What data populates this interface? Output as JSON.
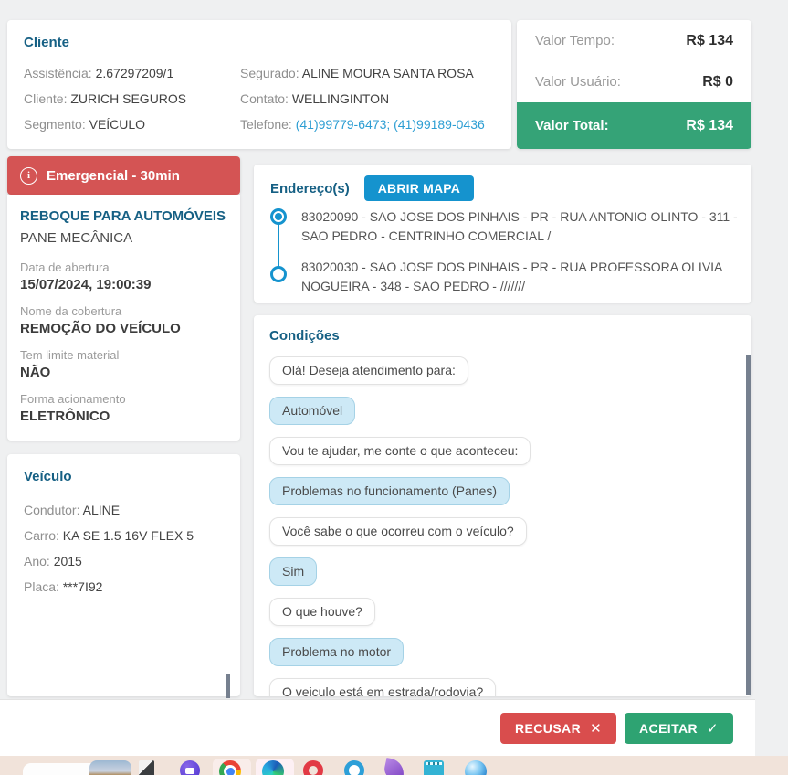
{
  "client_card": {
    "title": "Cliente",
    "left_rows": [
      {
        "label": "Assistência:",
        "value": "2.67297209/1"
      },
      {
        "label": "Cliente:",
        "value": "ZURICH SEGUROS"
      },
      {
        "label": "Segmento:",
        "value": "VEÍCULO"
      }
    ],
    "right_rows": [
      {
        "label": "Segurado:",
        "value": "ALINE MOURA SANTA ROSA"
      },
      {
        "label": "Contato:",
        "value": "WELLINGINTON"
      },
      {
        "label": "Telefone:",
        "value": "(41)99779-6473; (41)99189-0436"
      }
    ]
  },
  "valor_card": {
    "rows": [
      {
        "label": "Valor Tempo:",
        "value": "R$ 134"
      },
      {
        "label": "Valor Usuário:",
        "value": "R$ 0"
      }
    ],
    "total": {
      "label": "Valor Total:",
      "value": "R$ 134"
    }
  },
  "service_card": {
    "banner": "Emergencial - 30min",
    "banner_icon": "info-circle-icon",
    "service_name": "REBOQUE PARA AUTOMÓVEIS",
    "problem": "PANE MECÂNICA",
    "fields": [
      {
        "label": "Data de abertura",
        "value": "15/07/2024, 19:00:39"
      },
      {
        "label": "Nome da cobertura",
        "value": "REMOÇÃO DO VEÍCULO"
      },
      {
        "label": "Tem limite material",
        "value": "NÃO"
      },
      {
        "label": "Forma acionamento",
        "value": "ELETRÔNICO"
      }
    ]
  },
  "vehicle_card": {
    "title": "Veículo",
    "rows": [
      {
        "label": "Condutor:",
        "value": "ALINE"
      },
      {
        "label": "Carro:",
        "value": "KA SE 1.5 16V FLEX 5"
      },
      {
        "label": "Ano:",
        "value": "2015"
      },
      {
        "label": "Placa:",
        "value": "***7I92"
      }
    ]
  },
  "address_card": {
    "title": "Endereço(s)",
    "map_button": "ABRIR MAPA",
    "addresses": [
      "83020090 - SAO JOSE DOS PINHAIS - PR - RUA ANTONIO OLINTO - 311 - SAO PEDRO - CENTRINHO COMERCIAL /",
      "83020030 - SAO JOSE DOS PINHAIS - PR - RUA PROFESSORA OLIVIA NOGUEIRA - 348 - SAO PEDRO - ///////"
    ]
  },
  "conditions_card": {
    "title": "Condições",
    "messages": [
      {
        "type": "question",
        "text": "Olá! Deseja atendimento para:"
      },
      {
        "type": "answer",
        "text": "Automóvel"
      },
      {
        "type": "question",
        "text": "Vou te ajudar, me conte o que aconteceu:"
      },
      {
        "type": "answer",
        "text": "Problemas no funcionamento (Panes)"
      },
      {
        "type": "question",
        "text": "Você sabe o que ocorreu com o veículo?"
      },
      {
        "type": "answer",
        "text": "Sim"
      },
      {
        "type": "question",
        "text": "O que houve?"
      },
      {
        "type": "answer",
        "text": "Problema no motor"
      },
      {
        "type": "question",
        "text": "O veiculo está em estrada/rodovia?"
      }
    ]
  },
  "footer": {
    "reject_label": "RECUSAR",
    "reject_icon": "✕",
    "accept_label": "ACEITAR",
    "accept_icon": "✓"
  },
  "taskbar": {
    "icons": [
      "photos-widget-icon",
      "files-icon",
      "media-app-icon",
      "chrome-icon",
      "edge-icon",
      "opera-icon",
      "browser-ring-icon",
      "pen-app-icon",
      "notes-app-icon",
      "globe-app-icon"
    ]
  },
  "colors": {
    "heading_blue": "#166084",
    "link_blue": "#2d9ed3",
    "accent_blue": "#1593ce",
    "banner_red": "#d45454",
    "button_red": "#d94d4d",
    "total_green": "#35a377",
    "button_green": "#2ea372",
    "bubble_blue": "#cde9f6"
  }
}
